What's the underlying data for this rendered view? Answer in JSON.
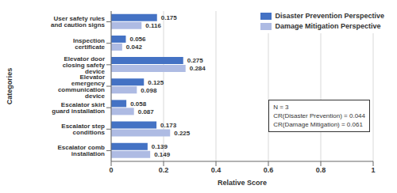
{
  "chart_data": {
    "type": "bar",
    "orientation": "horizontal",
    "x_label": "Relative Score",
    "y_label": "Categories",
    "categories": [
      "User safety rules and caution signs",
      "Inspection certificate",
      "Elevator door closing safety device",
      "Elevator emergency communication device",
      "Escalator skirt guard installation",
      "Escalator step conditions",
      "Escalator comb installation"
    ],
    "series": [
      {
        "name": "Disaster Prevention Perspective",
        "color": "#4472c4",
        "values": [
          0.175,
          0.056,
          0.275,
          0.125,
          0.058,
          0.173,
          0.139
        ]
      },
      {
        "name": "Damage Mitigation Perspective",
        "color": "#aebbe3",
        "values": [
          0.116,
          0.042,
          0.284,
          0.098,
          0.087,
          0.225,
          0.149
        ]
      }
    ],
    "xlim": [
      0,
      1
    ],
    "xticks": [
      0,
      0.2,
      0.4,
      0.6,
      0.8,
      1
    ],
    "grid": true,
    "legend": "upper right",
    "data_labels": true,
    "annotations": [
      "N = 3",
      "CR(Disaster Prevention) = 0.044",
      "CR(Damage Mitigation) = 0.061"
    ]
  }
}
